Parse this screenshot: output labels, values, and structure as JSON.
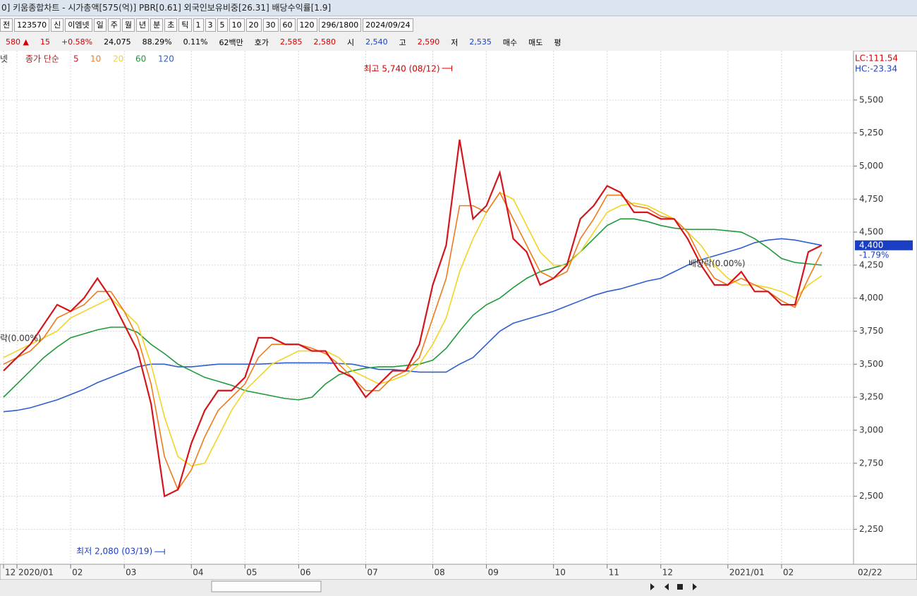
{
  "window": {
    "title": "0] 키움종합차트 - 시가총액[575(억)] PBR[0.61] 외국인보유비중[26.31] 배당수익률[1.9]"
  },
  "toolbar": {
    "items": [
      "전",
      "123570",
      "신",
      "이엠넷",
      "일",
      "주",
      "월",
      "년",
      "분",
      "초",
      "틱",
      "1",
      "3",
      "5",
      "10",
      "20",
      "30",
      "60",
      "120",
      "296/1800",
      "2024/09/24"
    ]
  },
  "quote_bar": {
    "items": [
      {
        "text": "580 ▲",
        "color": "#d40000"
      },
      {
        "text": "15",
        "color": "#d40000"
      },
      {
        "text": "+0.58%",
        "color": "#d40000"
      },
      {
        "text": "24,075",
        "color": "#000000"
      },
      {
        "text": "88.29%",
        "color": "#000000"
      },
      {
        "text": "0.11%",
        "color": "#000000"
      },
      {
        "text": "62백만",
        "color": "#000000"
      },
      {
        "text": "호가",
        "color": "#000000"
      },
      {
        "text": "2,585",
        "color": "#d40000"
      },
      {
        "text": "2,580",
        "color": "#d40000"
      },
      {
        "text": "시",
        "color": "#000000"
      },
      {
        "text": "2,540",
        "color": "#1a3fc4"
      },
      {
        "text": "고",
        "color": "#000000"
      },
      {
        "text": "2,590",
        "color": "#d40000"
      },
      {
        "text": "저",
        "color": "#000000"
      },
      {
        "text": "2,535",
        "color": "#1a3fc4"
      },
      {
        "text": "매수",
        "color": "#000000"
      },
      {
        "text": "매도",
        "color": "#000000"
      },
      {
        "text": "평",
        "color": "#000000"
      }
    ]
  },
  "chart_data": {
    "type": "line",
    "legend_prefix": "넷",
    "legend_title": "종가 단순",
    "categories": [
      "12",
      "2020/01",
      null,
      null,
      null,
      "02",
      null,
      null,
      null,
      "03",
      null,
      null,
      null,
      null,
      "04",
      null,
      null,
      null,
      "05",
      null,
      null,
      null,
      "06",
      null,
      null,
      null,
      null,
      "07",
      null,
      null,
      null,
      null,
      "08",
      null,
      null,
      null,
      "09",
      null,
      null,
      null,
      null,
      "10",
      null,
      null,
      null,
      "11",
      null,
      null,
      null,
      "12",
      null,
      null,
      null,
      null,
      "2021/01",
      null,
      null,
      null,
      "02",
      null,
      null,
      null
    ],
    "series": [
      {
        "name": "120",
        "color": "#2d5fd0",
        "values": [
          3140,
          3150,
          3170,
          3200,
          3230,
          3270,
          3310,
          3360,
          3400,
          3440,
          3480,
          3500,
          3500,
          3480,
          3480,
          3490,
          3500,
          3500,
          3500,
          3500,
          3505,
          3510,
          3510,
          3510,
          3510,
          3505,
          3500,
          3480,
          3460,
          3460,
          3450,
          3440,
          3440,
          3440,
          3500,
          3550,
          3650,
          3750,
          3810,
          3840,
          3870,
          3900,
          3940,
          3980,
          4020,
          4050,
          4070,
          4100,
          4130,
          4150,
          4200,
          4250,
          4290,
          4320,
          4350,
          4380,
          4420,
          4440,
          4450,
          4440,
          4420,
          4400
        ]
      },
      {
        "name": "60",
        "color": "#1f9a3a",
        "values": [
          3250,
          3350,
          3450,
          3550,
          3630,
          3700,
          3730,
          3760,
          3780,
          3780,
          3740,
          3650,
          3580,
          3500,
          3450,
          3400,
          3370,
          3340,
          3300,
          3280,
          3260,
          3240,
          3230,
          3250,
          3350,
          3420,
          3450,
          3470,
          3480,
          3480,
          3490,
          3500,
          3530,
          3620,
          3750,
          3870,
          3950,
          4000,
          4080,
          4150,
          4200,
          4230,
          4260,
          4350,
          4450,
          4550,
          4600,
          4600,
          4580,
          4550,
          4530,
          4520,
          4520,
          4520,
          4510,
          4500,
          4450,
          4380,
          4300,
          4270,
          4260,
          4250
        ]
      },
      {
        "name": "20",
        "color": "#f2d422",
        "values": [
          3550,
          3600,
          3650,
          3700,
          3750,
          3850,
          3900,
          3950,
          4000,
          3900,
          3800,
          3500,
          3100,
          2800,
          2730,
          2750,
          2950,
          3150,
          3300,
          3400,
          3500,
          3550,
          3600,
          3600,
          3600,
          3550,
          3450,
          3400,
          3350,
          3380,
          3420,
          3500,
          3650,
          3850,
          4200,
          4450,
          4650,
          4800,
          4750,
          4550,
          4350,
          4250,
          4250,
          4350,
          4500,
          4650,
          4700,
          4720,
          4700,
          4650,
          4600,
          4500,
          4400,
          4250,
          4150,
          4100,
          4100,
          4080,
          4050,
          4000,
          4100,
          4170
        ]
      },
      {
        "name": "10",
        "color": "#f07a1a",
        "values": [
          3500,
          3550,
          3600,
          3700,
          3850,
          3900,
          3950,
          4050,
          4050,
          3900,
          3700,
          3350,
          2800,
          2550,
          2700,
          2950,
          3150,
          3250,
          3350,
          3550,
          3650,
          3650,
          3650,
          3620,
          3580,
          3500,
          3400,
          3300,
          3300,
          3400,
          3450,
          3550,
          3850,
          4150,
          4700,
          4700,
          4650,
          4800,
          4600,
          4400,
          4200,
          4150,
          4200,
          4450,
          4600,
          4780,
          4780,
          4700,
          4680,
          4620,
          4600,
          4500,
          4300,
          4150,
          4100,
          4150,
          4100,
          4050,
          3980,
          3930,
          4150,
          4350
        ]
      },
      {
        "name": "5",
        "color": "#d4161c",
        "values": [
          3450,
          3550,
          3650,
          3800,
          3950,
          3900,
          4000,
          4150,
          4000,
          3800,
          3600,
          3200,
          2500,
          2550,
          2900,
          3150,
          3300,
          3300,
          3400,
          3700,
          3700,
          3650,
          3650,
          3600,
          3600,
          3450,
          3400,
          3250,
          3350,
          3450,
          3450,
          3650,
          4100,
          4400,
          5200,
          4600,
          4700,
          4950,
          4450,
          4350,
          4100,
          4150,
          4250,
          4600,
          4700,
          4850,
          4800,
          4650,
          4650,
          4600,
          4600,
          4450,
          4250,
          4100,
          4100,
          4200,
          4050,
          4050,
          3950,
          3950,
          4350,
          4400
        ]
      }
    ],
    "ylim": [
      1985,
      5750
    ],
    "yticks": [
      {
        "value": 2250,
        "label": "2,250"
      },
      {
        "value": 2500,
        "label": "2,500"
      },
      {
        "value": 2750,
        "label": "2,750"
      },
      {
        "value": 3000,
        "label": "3,000"
      },
      {
        "value": 3250,
        "label": "3,250"
      },
      {
        "value": 3500,
        "label": "3,500"
      },
      {
        "value": 3750,
        "label": "3,750"
      },
      {
        "value": 4000,
        "label": "4,000"
      },
      {
        "value": 4250,
        "label": "4,250"
      },
      {
        "value": 4500,
        "label": "4,500"
      },
      {
        "value": 4750,
        "label": "4,750"
      },
      {
        "value": 5000,
        "label": "5,000"
      },
      {
        "value": 5250,
        "label": "5,250"
      },
      {
        "value": 5500,
        "label": "5,500"
      }
    ],
    "grid": true,
    "x_end_label": "02/22",
    "lc": "LC:111.54",
    "hc": "HC:-23.34",
    "current_price": {
      "value": 4400,
      "label": "4,400"
    },
    "change": "-1.79%",
    "high": {
      "value": 5740,
      "label": "최고 5,740 (08/12)"
    },
    "low": {
      "value": 2080,
      "label": "최저 2,080 (03/19)"
    },
    "annotations": [
      "락(0.00%)",
      "배당락(0.00%)"
    ]
  }
}
